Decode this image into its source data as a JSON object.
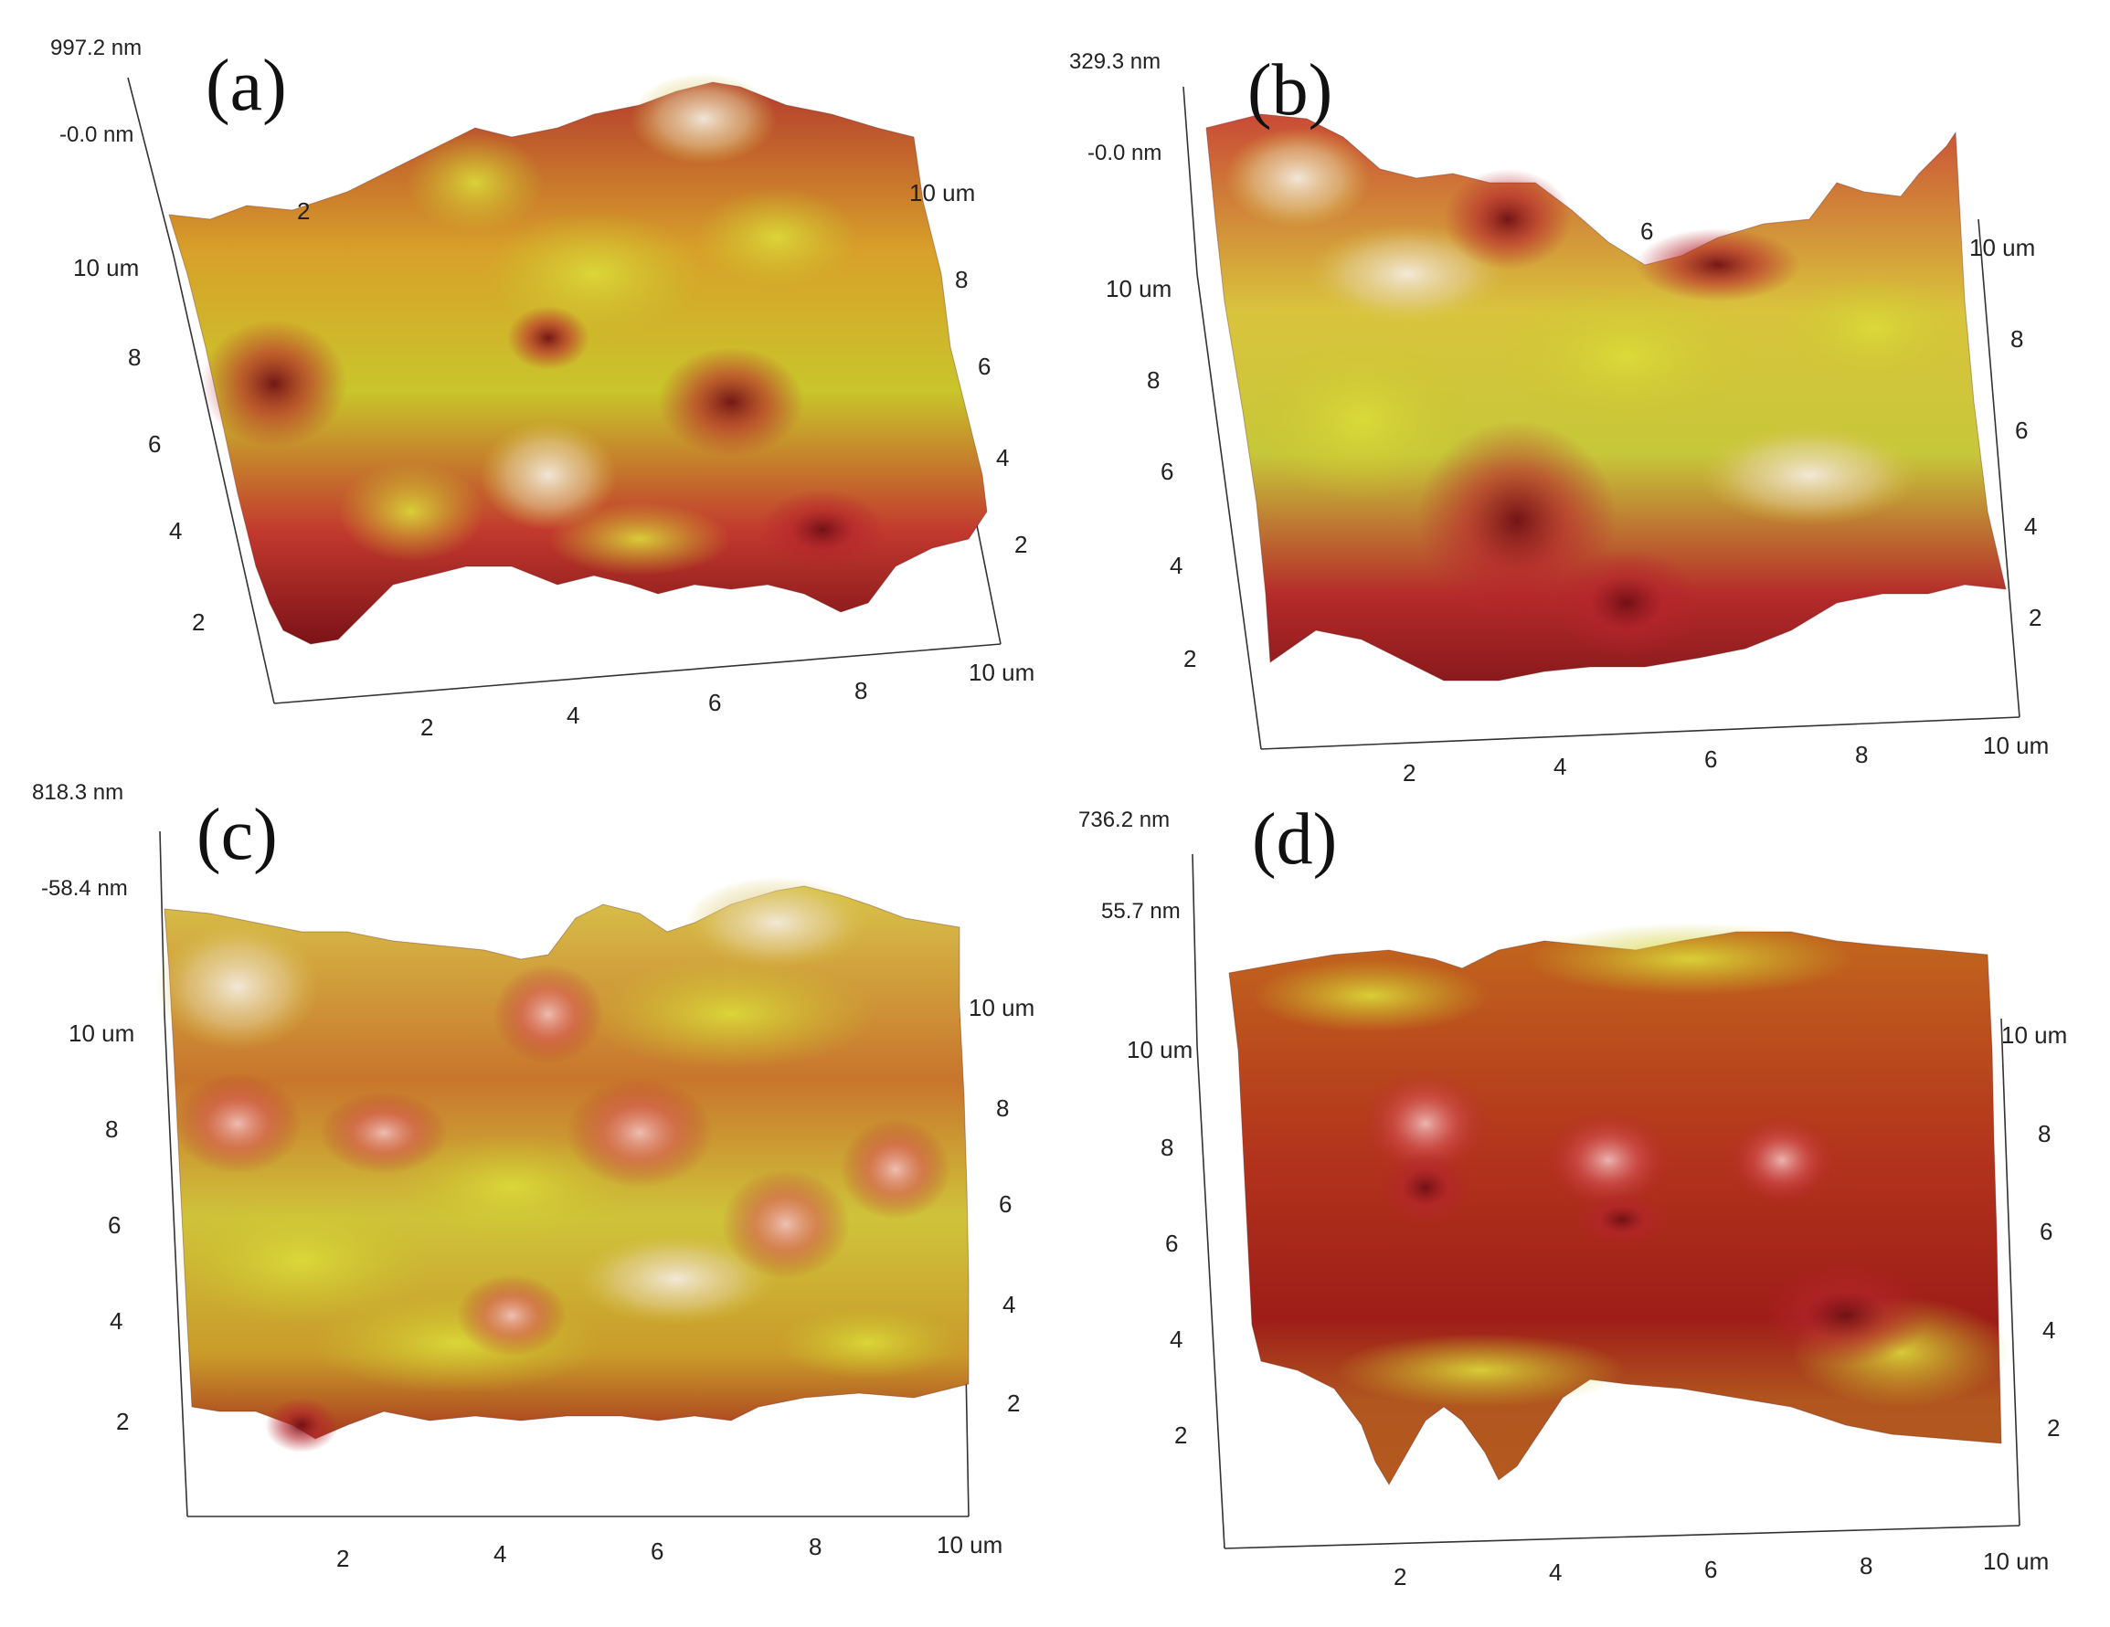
{
  "colors": {
    "highlight": "#f2e8dc",
    "yellow": "#d4cf2c",
    "orange": "#cc7a1f",
    "red": "#b5242c",
    "dark_red": "#6e0f14",
    "axis": "#333333"
  },
  "panels": [
    {
      "id": "a",
      "label": "(a)",
      "z_max": "997.2 nm",
      "z_min": "-0.0 nm",
      "y_ticks": [
        "10 um",
        "8",
        "6",
        "4",
        "2"
      ],
      "x_ticks": [
        "2",
        "4",
        "6",
        "8",
        "10 um"
      ],
      "right_ticks": [
        "10 um",
        "8",
        "6",
        "4",
        "2"
      ],
      "back_ticks": [
        "2"
      ]
    },
    {
      "id": "b",
      "label": "(b)",
      "z_max": "329.3 nm",
      "z_min": "-0.0 nm",
      "y_ticks": [
        "10 um",
        "8",
        "6",
        "4",
        "2"
      ],
      "x_ticks": [
        "2",
        "4",
        "6",
        "8",
        "10 um"
      ],
      "right_ticks": [
        "10 um",
        "8",
        "6",
        "4",
        "2"
      ],
      "back_ticks": [
        "6"
      ]
    },
    {
      "id": "c",
      "label": "(c)",
      "z_max": "818.3 nm",
      "z_min": "-58.4 nm",
      "y_ticks": [
        "10 um",
        "8",
        "6",
        "4",
        "2"
      ],
      "x_ticks": [
        "2",
        "4",
        "6",
        "8",
        "10 um"
      ],
      "right_ticks": [
        "10 um",
        "8",
        "6",
        "4",
        "2"
      ],
      "back_ticks": []
    },
    {
      "id": "d",
      "label": "(d)",
      "z_max": "736.2 nm",
      "z_min": "55.7 nm",
      "y_ticks": [
        "10 um",
        "8",
        "6",
        "4",
        "2"
      ],
      "x_ticks": [
        "2",
        "4",
        "6",
        "8",
        "10 um"
      ],
      "right_ticks": [
        "10 um",
        "8",
        "6",
        "4",
        "2"
      ],
      "back_ticks": []
    }
  ]
}
